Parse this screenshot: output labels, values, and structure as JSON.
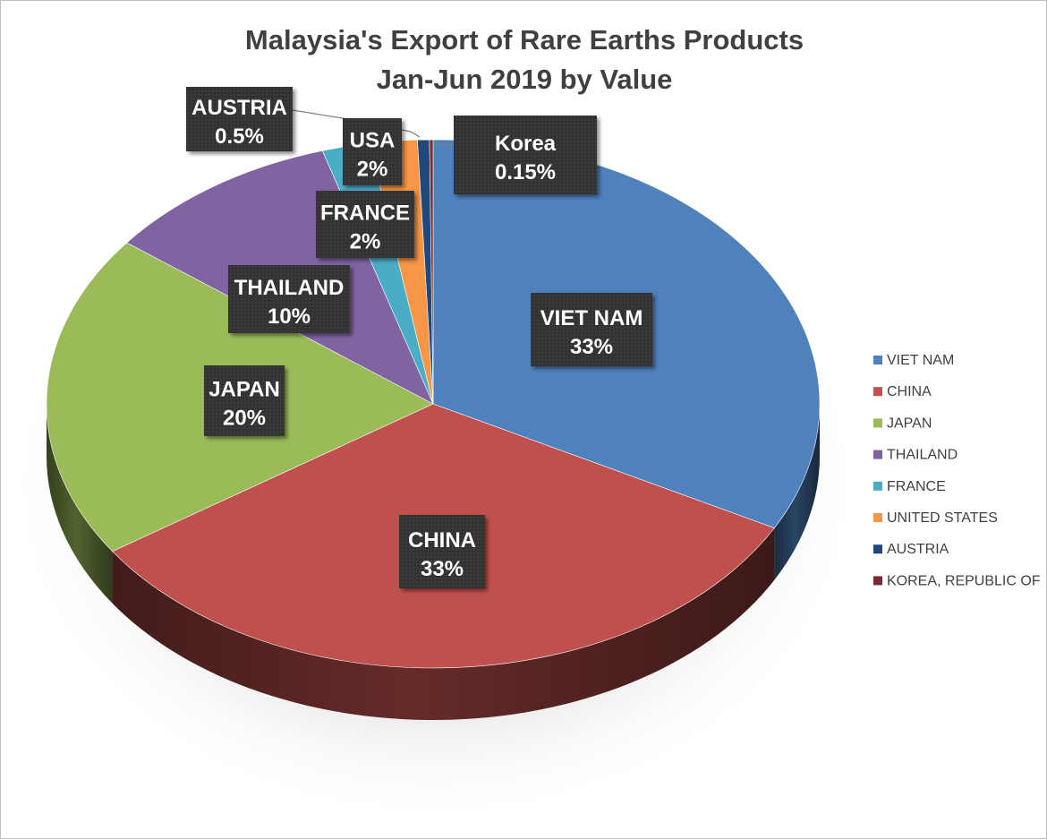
{
  "chart_data": {
    "type": "pie",
    "title": "Malaysia's Export of Rare Earths Products",
    "subtitle": "Jan-Jun 2019 by Value",
    "categories": [
      "VIET NAM",
      "CHINA",
      "JAPAN",
      "THAILAND",
      "FRANCE",
      "UNITED STATES",
      "AUSTRIA",
      "KOREA, REPUBLIC OF"
    ],
    "values": [
      33,
      33,
      20,
      10,
      2,
      2,
      0.5,
      0.15
    ],
    "colors": [
      "#4f81bd",
      "#c0504d",
      "#9bbb59",
      "#8064a2",
      "#4bacc6",
      "#f79646",
      "#1f497d",
      "#7b2c2c"
    ],
    "data_labels": [
      {
        "name": "VIET NAM",
        "value": "33%"
      },
      {
        "name": "CHINA",
        "value": "33%"
      },
      {
        "name": "JAPAN",
        "value": "20%"
      },
      {
        "name": "THAILAND",
        "value": "10%"
      },
      {
        "name": "FRANCE",
        "value": "2%"
      },
      {
        "name": "USA",
        "value": "2%"
      },
      {
        "name": "AUSTRIA",
        "value": "0.5%"
      },
      {
        "name": "Korea",
        "value": "0.15%"
      }
    ],
    "legend": {
      "position": "right",
      "entries": [
        "VIET NAM",
        "CHINA",
        "JAPAN",
        "THAILAND",
        "FRANCE",
        "UNITED STATES",
        "AUSTRIA",
        "KOREA, REPUBLIC OF"
      ]
    },
    "style": "3d"
  }
}
